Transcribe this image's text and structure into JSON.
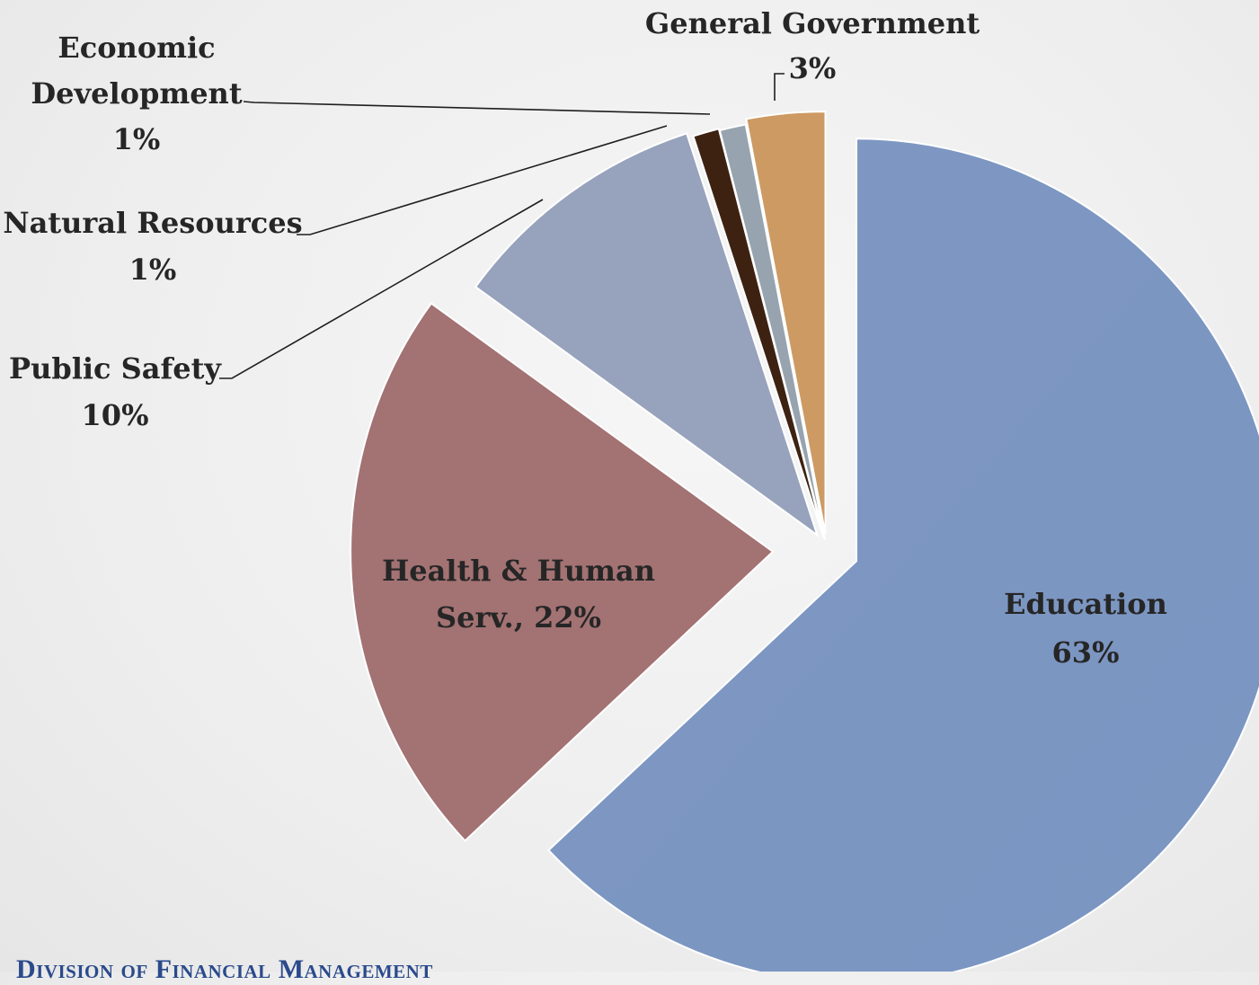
{
  "chart_data": {
    "type": "pie",
    "title": "",
    "slices": [
      {
        "category": "Education",
        "value": 63,
        "label_lines": [
          "Education",
          "63%"
        ],
        "color": "#7e98c2"
      },
      {
        "category": "Health & Human Serv.",
        "value": 22,
        "label_lines": [
          "Health & Human",
          "Serv., 22%"
        ],
        "color": "#a37273"
      },
      {
        "category": "Public Safety",
        "value": 10,
        "label_lines": [
          "Public Safety",
          "10%"
        ],
        "color": "#97a2bc"
      },
      {
        "category": "Natural Resources",
        "value": 1,
        "label_lines": [
          "Natural Resources",
          "1%"
        ],
        "color": "#3d2212"
      },
      {
        "category": "Economic Development",
        "value": 1,
        "label_lines": [
          "Economic",
          "Development",
          "1%"
        ],
        "color": "#97a3ae"
      },
      {
        "category": "General Government",
        "value": 3,
        "label_lines": [
          "General Government",
          "3%"
        ],
        "color": "#cd9a63"
      }
    ]
  },
  "footer": {
    "text": "Division of Financial Management"
  }
}
